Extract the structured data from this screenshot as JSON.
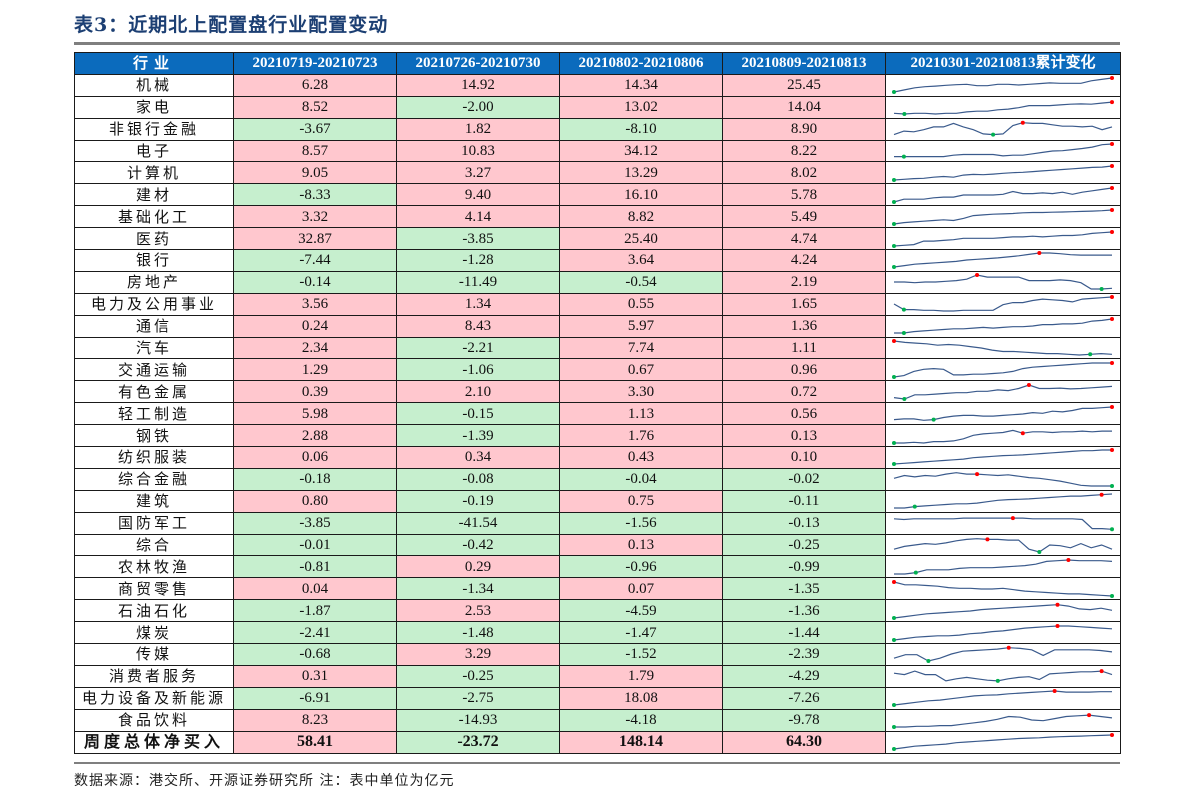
{
  "title": "表3：近期北上配置盘行业配置变动",
  "table": {
    "headers": [
      "行业",
      "20210719-20210723",
      "20210726-20210730",
      "20210802-20210806",
      "20210809-20210813",
      "20210301-20210813累计变化"
    ],
    "rows": [
      {
        "industry": "机械",
        "v": [
          "6.28",
          "14.92",
          "14.34",
          "25.45"
        ]
      },
      {
        "industry": "家电",
        "v": [
          "8.52",
          "-2.00",
          "13.02",
          "14.04"
        ]
      },
      {
        "industry": "非银行金融",
        "v": [
          "-3.67",
          "1.82",
          "-8.10",
          "8.90"
        ]
      },
      {
        "industry": "电子",
        "v": [
          "8.57",
          "10.83",
          "34.12",
          "8.22"
        ]
      },
      {
        "industry": "计算机",
        "v": [
          "9.05",
          "3.27",
          "13.29",
          "8.02"
        ]
      },
      {
        "industry": "建材",
        "v": [
          "-8.33",
          "9.40",
          "16.10",
          "5.78"
        ]
      },
      {
        "industry": "基础化工",
        "v": [
          "3.32",
          "4.14",
          "8.82",
          "5.49"
        ]
      },
      {
        "industry": "医药",
        "v": [
          "32.87",
          "-3.85",
          "25.40",
          "4.74"
        ]
      },
      {
        "industry": "银行",
        "v": [
          "-7.44",
          "-1.28",
          "3.64",
          "4.24"
        ]
      },
      {
        "industry": "房地产",
        "v": [
          "-0.14",
          "-11.49",
          "-0.54",
          "2.19"
        ]
      },
      {
        "industry": "电力及公用事业",
        "v": [
          "3.56",
          "1.34",
          "0.55",
          "1.65"
        ]
      },
      {
        "industry": "通信",
        "v": [
          "0.24",
          "8.43",
          "5.97",
          "1.36"
        ]
      },
      {
        "industry": "汽车",
        "v": [
          "2.34",
          "-2.21",
          "7.74",
          "1.11"
        ]
      },
      {
        "industry": "交通运输",
        "v": [
          "1.29",
          "-1.06",
          "0.67",
          "0.96"
        ]
      },
      {
        "industry": "有色金属",
        "v": [
          "0.39",
          "2.10",
          "3.30",
          "0.72"
        ]
      },
      {
        "industry": "轻工制造",
        "v": [
          "5.98",
          "-0.15",
          "1.13",
          "0.56"
        ]
      },
      {
        "industry": "钢铁",
        "v": [
          "2.88",
          "-1.39",
          "1.76",
          "0.13"
        ]
      },
      {
        "industry": "纺织服装",
        "v": [
          "0.06",
          "0.34",
          "0.43",
          "0.10"
        ]
      },
      {
        "industry": "综合金融",
        "v": [
          "-0.18",
          "-0.08",
          "-0.04",
          "-0.02"
        ]
      },
      {
        "industry": "建筑",
        "v": [
          "0.80",
          "-0.19",
          "0.75",
          "-0.11"
        ]
      },
      {
        "industry": "国防军工",
        "v": [
          "-3.85",
          "-41.54",
          "-1.56",
          "-0.13"
        ]
      },
      {
        "industry": "综合",
        "v": [
          "-0.01",
          "-0.42",
          "0.13",
          "-0.25"
        ]
      },
      {
        "industry": "农林牧渔",
        "v": [
          "-0.81",
          "0.29",
          "-0.96",
          "-0.99"
        ]
      },
      {
        "industry": "商贸零售",
        "v": [
          "0.04",
          "-1.34",
          "0.07",
          "-1.35"
        ]
      },
      {
        "industry": "石油石化",
        "v": [
          "-1.87",
          "2.53",
          "-4.59",
          "-1.36"
        ]
      },
      {
        "industry": "煤炭",
        "v": [
          "-2.41",
          "-1.48",
          "-1.47",
          "-1.44"
        ]
      },
      {
        "industry": "传媒",
        "v": [
          "-0.68",
          "3.29",
          "-1.52",
          "-2.39"
        ]
      },
      {
        "industry": "消费者服务",
        "v": [
          "0.31",
          "-0.25",
          "1.79",
          "-4.29"
        ]
      },
      {
        "industry": "电力设备及新能源",
        "v": [
          "-6.91",
          "-2.75",
          "18.08",
          "-7.26"
        ]
      },
      {
        "industry": "食品饮料",
        "v": [
          "8.23",
          "-14.93",
          "-4.18",
          "-9.78"
        ]
      }
    ],
    "total": {
      "industry": "周度总体净买入",
      "v": [
        "58.41",
        "-23.72",
        "148.14",
        "64.30"
      ]
    }
  },
  "sparklines": [
    {
      "p": [
        0,
        0.15,
        0.3,
        0.38,
        0.42,
        0.48,
        0.52,
        0.55,
        0.45,
        0.45,
        0.55,
        0.55,
        0.5,
        0.55,
        0.6,
        0.65,
        0.62,
        0.62,
        0.62,
        0.8,
        0.9,
        1
      ],
      "max": 21,
      "min": 0
    },
    {
      "p": [
        0.05,
        0,
        0.05,
        0.05,
        0,
        0.05,
        0.05,
        0.15,
        0.2,
        0.2,
        0.3,
        0.35,
        0.45,
        0.6,
        0.6,
        0.6,
        0.65,
        0.7,
        0.72,
        0.7,
        0.78,
        0.85
      ],
      "max": 21,
      "min": 1
    },
    {
      "p": [
        0.1,
        0.35,
        0.3,
        0.45,
        0.65,
        0.65,
        0.9,
        0.65,
        0.45,
        0.15,
        0.1,
        0.15,
        0.75,
        0.95,
        0.9,
        0.9,
        0.8,
        0.7,
        0.7,
        0.65,
        0.7,
        0.45,
        0.65
      ],
      "max": 13,
      "min": 10
    },
    {
      "p": [
        0.1,
        0.1,
        0.1,
        0.1,
        0.1,
        0.1,
        0.2,
        0.25,
        0.25,
        0.25,
        0.25,
        0.15,
        0.2,
        0.2,
        0.3,
        0.4,
        0.5,
        0.52,
        0.6,
        0.68,
        0.78,
        0.95,
        1
      ],
      "max": 22,
      "min": 1
    },
    {
      "p": [
        0,
        0.05,
        0.1,
        0.12,
        0.2,
        0.25,
        0.2,
        0.35,
        0.4,
        0.38,
        0.42,
        0.48,
        0.52,
        0.55,
        0.6,
        0.65,
        0.7,
        0.75,
        0.8,
        0.85,
        0.9,
        0.92,
        1
      ],
      "max": 22,
      "min": 0
    },
    {
      "p": [
        0,
        0.2,
        0.2,
        0.2,
        0.3,
        0.35,
        0.35,
        0.5,
        0.5,
        0.5,
        0.5,
        0.55,
        0.75,
        0.6,
        0.6,
        0.65,
        0.6,
        0.7,
        0.55,
        0.7,
        0.8,
        0.9,
        1
      ],
      "max": 22,
      "min": 0
    },
    {
      "p": [
        0,
        0.1,
        0.15,
        0.2,
        0.25,
        0.3,
        0.25,
        0.4,
        0.6,
        0.65,
        0.7,
        0.72,
        0.75,
        0.8,
        0.82,
        0.82,
        0.84,
        0.86,
        0.88,
        0.9,
        0.92,
        0.95,
        1
      ],
      "max": 22,
      "min": 0
    },
    {
      "p": [
        0,
        0.05,
        0.1,
        0.35,
        0.35,
        0.4,
        0.45,
        0.55,
        0.55,
        0.55,
        0.55,
        0.6,
        0.65,
        0.65,
        0.7,
        0.65,
        0.7,
        0.75,
        0.75,
        0.8,
        0.9,
        0.95,
        1
      ],
      "max": 22,
      "min": 0
    },
    {
      "p": [
        0,
        0.1,
        0.2,
        0.25,
        0.3,
        0.35,
        0.4,
        0.5,
        0.55,
        0.6,
        0.65,
        0.72,
        0.8,
        0.9,
        1,
        1,
        0.95,
        0.88,
        0.85,
        0.85,
        0.85,
        0.85
      ],
      "max": 14,
      "min": 0
    },
    {
      "p": [
        0.5,
        0.5,
        0.45,
        0.5,
        0.5,
        0.55,
        0.6,
        0.7,
        1,
        0.85,
        0.85,
        0.85,
        0.85,
        0.6,
        0.6,
        0.6,
        0.65,
        0.6,
        0.45,
        0,
        0,
        0.05
      ],
      "max": 8,
      "min": 20
    },
    {
      "p": [
        0.5,
        0.1,
        0.1,
        0.05,
        0.05,
        0,
        0,
        0.05,
        0.05,
        0.05,
        0.05,
        0.45,
        0.6,
        0.6,
        0.75,
        0.85,
        0.8,
        0.75,
        0.65,
        0.85,
        0.9,
        0.95,
        1
      ],
      "max": 22,
      "min": 1
    },
    {
      "p": [
        0,
        0,
        0.1,
        0.15,
        0.2,
        0.25,
        0.3,
        0.3,
        0.35,
        0.4,
        0.35,
        0.4,
        0.45,
        0.45,
        0.5,
        0.6,
        0.6,
        0.65,
        0.65,
        0.7,
        0.85,
        0.9,
        1
      ],
      "max": 22,
      "min": 1
    },
    {
      "p": [
        1,
        0.9,
        0.85,
        0.8,
        0.7,
        0.75,
        0.7,
        0.6,
        0.5,
        0.35,
        0.25,
        0.25,
        0.2,
        0.15,
        0.1,
        0.1,
        0.05,
        0,
        0.05,
        0.1,
        0.05
      ],
      "max": 0,
      "min": 18
    },
    {
      "p": [
        0,
        0.1,
        0.4,
        0.55,
        0.6,
        0.55,
        0.15,
        0.15,
        0.2,
        0.2,
        0.25,
        0.3,
        0.4,
        0.6,
        0.7,
        0.75,
        0.8,
        0.85,
        0.9,
        0.95,
        1,
        1,
        1
      ],
      "max": 22,
      "min": 0
    },
    {
      "p": [
        0.1,
        0,
        0.3,
        0.3,
        0.35,
        0.4,
        0.45,
        0.45,
        0.55,
        0.55,
        0.65,
        0.6,
        0.75,
        1,
        0.75,
        0.75,
        0.78,
        0.72,
        0.75,
        0.8,
        0.85,
        0.9
      ],
      "max": 13,
      "min": 1
    },
    {
      "p": [
        0.1,
        0.15,
        0.15,
        0.05,
        0.1,
        0.25,
        0.35,
        0.4,
        0.4,
        0.35,
        0.35,
        0.4,
        0.45,
        0.5,
        0.6,
        0.55,
        0.7,
        0.65,
        0.75,
        0.9,
        0.9,
        0.95,
        1
      ],
      "max": 22,
      "min": 4
    },
    {
      "p": [
        0,
        0,
        0.05,
        0,
        0.1,
        0.1,
        0.15,
        0.3,
        0.55,
        0.65,
        0.7,
        0.75,
        0.9,
        0.7,
        0.8,
        0.8,
        0.75,
        0.8,
        0.8,
        0.85,
        0.8,
        0.85,
        0.85
      ],
      "max": 13,
      "min": 0
    },
    {
      "p": [
        0,
        0.05,
        0.1,
        0.15,
        0.2,
        0.25,
        0.3,
        0.35,
        0.45,
        0.5,
        0.55,
        0.6,
        0.62,
        0.65,
        0.7,
        0.75,
        0.8,
        0.85,
        0.9,
        0.95,
        0.95,
        1,
        1
      ],
      "max": 22,
      "min": 0
    },
    {
      "p": [
        0.55,
        0.75,
        0.65,
        0.75,
        0.7,
        0.85,
        0.95,
        0.85,
        0.85,
        0.8,
        0.75,
        0.8,
        0.7,
        0.6,
        0.55,
        0.45,
        0.35,
        0.2,
        0.05,
        0,
        0,
        0
      ],
      "max": 8,
      "min": 21
    },
    {
      "p": [
        0,
        0,
        0.1,
        0.15,
        0.2,
        0.25,
        0.3,
        0.3,
        0.35,
        0.45,
        0.55,
        0.6,
        0.62,
        0.65,
        0.7,
        0.75,
        0.8,
        0.85,
        0.85,
        0.9,
        0.95,
        1
      ],
      "max": 20,
      "min": 2
    },
    {
      "p": [
        0.8,
        0.75,
        0.8,
        0.8,
        0.8,
        0.8,
        0.8,
        0.85,
        0.85,
        0.85,
        0.85,
        0.85,
        0.85,
        0.85,
        0.8,
        0.8,
        0.8,
        0.8,
        0.8,
        0.75,
        0.1,
        0.1,
        0.05
      ],
      "max": 12,
      "min": 22
    },
    {
      "p": [
        0.2,
        0.4,
        0.5,
        0.6,
        0.55,
        0.65,
        0.8,
        0.9,
        0.95,
        0.9,
        0.9,
        0.85,
        0.85,
        0.2,
        0,
        0.5,
        0.45,
        0.3,
        0.6,
        0.3,
        0.5,
        0.2
      ],
      "max": 9,
      "min": 14
    },
    {
      "p": [
        0,
        0,
        0.1,
        0.3,
        0.3,
        0.3,
        0.4,
        0.45,
        0.45,
        0.45,
        0.5,
        0.55,
        0.6,
        0.7,
        0.9,
        0.95,
        1,
        0.95,
        0.95,
        0.95,
        0.9
      ],
      "max": 16,
      "min": 2
    },
    {
      "p": [
        1,
        0.8,
        0.8,
        0.75,
        0.7,
        0.6,
        0.55,
        0.55,
        0.5,
        0.5,
        0.55,
        0.45,
        0.35,
        0.3,
        0.25,
        0.2,
        0.15,
        0.15,
        0.1,
        0.05,
        0
      ],
      "max": 0,
      "min": 20
    },
    {
      "p": [
        0,
        0.1,
        0.2,
        0.3,
        0.35,
        0.4,
        0.45,
        0.5,
        0.6,
        0.65,
        0.7,
        0.75,
        0.8,
        0.85,
        0.9,
        0.95,
        0.85,
        0.65,
        0.6,
        0.7,
        0.55
      ],
      "max": 15,
      "min": 0
    },
    {
      "p": [
        0,
        0.1,
        0.2,
        0.25,
        0.3,
        0.3,
        0.35,
        0.45,
        0.5,
        0.6,
        0.65,
        0.75,
        0.85,
        0.9,
        0.95,
        1,
        1,
        0.95,
        0.9,
        0.85,
        0.8
      ],
      "max": 15,
      "min": 0
    },
    {
      "p": [
        0.2,
        0.45,
        0.45,
        0,
        0.2,
        0.5,
        0.7,
        0.75,
        0.8,
        0.85,
        0.95,
        0.9,
        0.8,
        0.4,
        0.8,
        0.8,
        0.8,
        0.8,
        0.75,
        0.65
      ],
      "max": 10,
      "min": 3
    },
    {
      "p": [
        0.7,
        0.6,
        0.85,
        0.6,
        0.6,
        0.15,
        0.3,
        0.4,
        0.3,
        0.2,
        0.15,
        0.3,
        0.4,
        0.45,
        0.25,
        0.65,
        0.7,
        0.75,
        0.8,
        0.8,
        0.85,
        0.6
      ],
      "max": 20,
      "min": 10
    },
    {
      "p": [
        0,
        0.1,
        0.2,
        0.3,
        0.35,
        0.45,
        0.55,
        0.65,
        0.7,
        0.72,
        0.8,
        0.85,
        0.9,
        0.95,
        1,
        0.92,
        0.92,
        0.92,
        0.95,
        0.95
      ],
      "max": 14,
      "min": 0
    },
    {
      "p": [
        0,
        0,
        0.05,
        0.05,
        0.1,
        0.1,
        0.2,
        0.3,
        0.4,
        0.55,
        0.75,
        0.7,
        0.5,
        0.45,
        0.6,
        0.75,
        0.8,
        0.85,
        0.75,
        0.65
      ],
      "max": 17,
      "min": 0
    },
    {
      "p": [
        0,
        0.1,
        0.2,
        0.25,
        0.3,
        0.35,
        0.45,
        0.5,
        0.55,
        0.6,
        0.65,
        0.7,
        0.75,
        0.78,
        0.8,
        0.85,
        0.88,
        0.9,
        0.92,
        0.95,
        0.97,
        1
      ],
      "max": 21,
      "min": 0
    }
  ],
  "colors": {
    "header_bg": "#0b6bbd",
    "positive_bg": "#ffc7ce",
    "negative_bg": "#c6efce",
    "line": "#3a5a8c",
    "max_dot": "#ff0000",
    "min_dot": "#00b050"
  },
  "footer": "数据来源：港交所、开源证券研究所 注：表中单位为亿元"
}
